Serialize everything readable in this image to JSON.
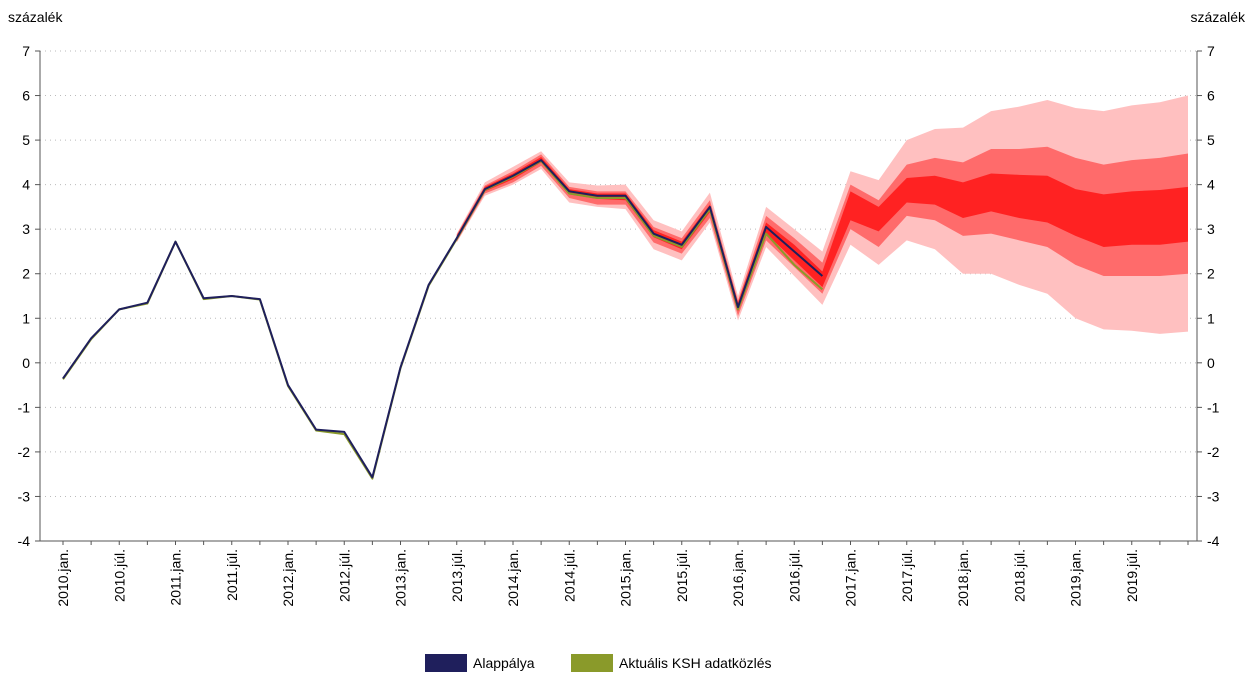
{
  "chart_data": {
    "type": "fan",
    "y_label": "százalék",
    "y2_label": "százalék",
    "categories": [
      "2010.jan.",
      null,
      "2010.júl.",
      null,
      "2011.jan.",
      null,
      "2011.júl.",
      null,
      "2012.jan.",
      null,
      "2012.júl.",
      null,
      "2013.jan.",
      null,
      "2013.júl.",
      null,
      "2014.jan.",
      null,
      "2014.júl.",
      null,
      "2015.jan.",
      null,
      "2015.júl.",
      null,
      "2016.jan.",
      null,
      "2016.júl.",
      null,
      "2017.jan.",
      null,
      "2017.júl.",
      null,
      "2018.jan.",
      null,
      "2018.júl.",
      null,
      "2019.jan.",
      null,
      "2019.júl.",
      null,
      null
    ],
    "series": [
      {
        "name": "Alappálya",
        "color": "#1f1f5c",
        "values": [
          -0.35,
          0.55,
          1.2,
          1.35,
          2.72,
          1.45,
          1.5,
          1.43,
          -0.5,
          -1.5,
          -1.55,
          -2.57,
          -0.1,
          1.75,
          2.8,
          3.9,
          4.2,
          4.55,
          3.85,
          3.75,
          3.75,
          2.9,
          2.65,
          3.5,
          1.25,
          3.05,
          2.5,
          1.95,
          null,
          null,
          null,
          null,
          null,
          null,
          null,
          null,
          null,
          null,
          null,
          null,
          null
        ]
      },
      {
        "name": "Aktuális KSH adatközlés",
        "color": "#8a9a2a",
        "values": [
          -0.37,
          0.53,
          1.2,
          1.33,
          2.72,
          1.43,
          1.5,
          1.42,
          -0.52,
          -1.52,
          -1.6,
          -2.6,
          -0.12,
          1.73,
          2.78,
          3.88,
          4.18,
          4.53,
          3.8,
          3.7,
          3.7,
          2.85,
          2.6,
          3.45,
          1.2,
          2.9,
          2.2,
          1.65,
          null,
          null,
          null,
          null,
          null,
          null,
          null,
          null,
          null,
          null,
          null,
          null,
          null
        ]
      }
    ],
    "bands": [
      {
        "color": "#ffc0c0",
        "lower": [
          null,
          null,
          null,
          null,
          null,
          null,
          null,
          null,
          null,
          null,
          null,
          null,
          null,
          null,
          2.7,
          3.75,
          4.0,
          4.35,
          3.6,
          3.5,
          3.45,
          2.55,
          2.3,
          3.15,
          0.95,
          2.6,
          1.95,
          1.3,
          2.65,
          2.2,
          2.75,
          2.55,
          2.0,
          2.0,
          1.75,
          1.55,
          1.0,
          0.75,
          0.72,
          0.65,
          0.7
        ],
        "upper": [
          null,
          null,
          null,
          null,
          null,
          null,
          null,
          null,
          null,
          null,
          null,
          null,
          null,
          null,
          2.9,
          4.05,
          4.4,
          4.75,
          4.05,
          3.98,
          4.0,
          3.2,
          2.95,
          3.82,
          1.5,
          3.5,
          3.0,
          2.5,
          4.3,
          4.1,
          5.0,
          5.25,
          5.28,
          5.65,
          5.75,
          5.9,
          5.72,
          5.65,
          5.78,
          5.85,
          6.0
        ]
      },
      {
        "color": "#ff6b6b",
        "lower": [
          null,
          null,
          null,
          null,
          null,
          null,
          null,
          null,
          null,
          null,
          null,
          null,
          null,
          null,
          2.72,
          3.8,
          4.05,
          4.42,
          3.7,
          3.55,
          3.55,
          2.7,
          2.45,
          3.25,
          1.05,
          2.75,
          2.15,
          1.55,
          3.0,
          2.6,
          3.3,
          3.2,
          2.85,
          2.9,
          2.75,
          2.6,
          2.2,
          1.95,
          1.95,
          1.95,
          2.0
        ],
        "upper": [
          null,
          null,
          null,
          null,
          null,
          null,
          null,
          null,
          null,
          null,
          null,
          null,
          null,
          null,
          2.88,
          3.98,
          4.3,
          4.68,
          3.95,
          3.85,
          3.85,
          3.05,
          2.8,
          3.65,
          1.4,
          3.3,
          2.8,
          2.25,
          4.0,
          3.65,
          4.45,
          4.6,
          4.5,
          4.8,
          4.8,
          4.85,
          4.6,
          4.45,
          4.55,
          4.6,
          4.7
        ]
      },
      {
        "color": "#ff2222",
        "lower": [
          null,
          null,
          null,
          null,
          null,
          null,
          null,
          null,
          null,
          null,
          null,
          null,
          null,
          null,
          2.75,
          3.85,
          4.12,
          4.5,
          3.78,
          3.68,
          3.65,
          2.82,
          2.55,
          3.38,
          1.15,
          2.9,
          2.3,
          1.7,
          3.2,
          2.95,
          3.6,
          3.55,
          3.25,
          3.4,
          3.25,
          3.15,
          2.85,
          2.6,
          2.65,
          2.65,
          2.72
        ],
        "upper": [
          null,
          null,
          null,
          null,
          null,
          null,
          null,
          null,
          null,
          null,
          null,
          null,
          null,
          null,
          2.85,
          3.95,
          4.25,
          4.62,
          3.9,
          3.8,
          3.8,
          2.98,
          2.72,
          3.55,
          1.35,
          3.15,
          2.65,
          2.05,
          3.85,
          3.5,
          4.15,
          4.2,
          4.05,
          4.25,
          4.22,
          4.2,
          3.9,
          3.78,
          3.85,
          3.88,
          3.95
        ]
      }
    ],
    "ylim": [
      -4,
      7
    ],
    "yticks": [
      -4,
      -3,
      -2,
      -1,
      0,
      1,
      2,
      3,
      4,
      5,
      6,
      7
    ],
    "y2lim": [
      -4,
      7
    ],
    "y2ticks": [
      -4,
      -3,
      -2,
      -1,
      0,
      1,
      2,
      3,
      4,
      5,
      6,
      7
    ],
    "grid": true
  }
}
